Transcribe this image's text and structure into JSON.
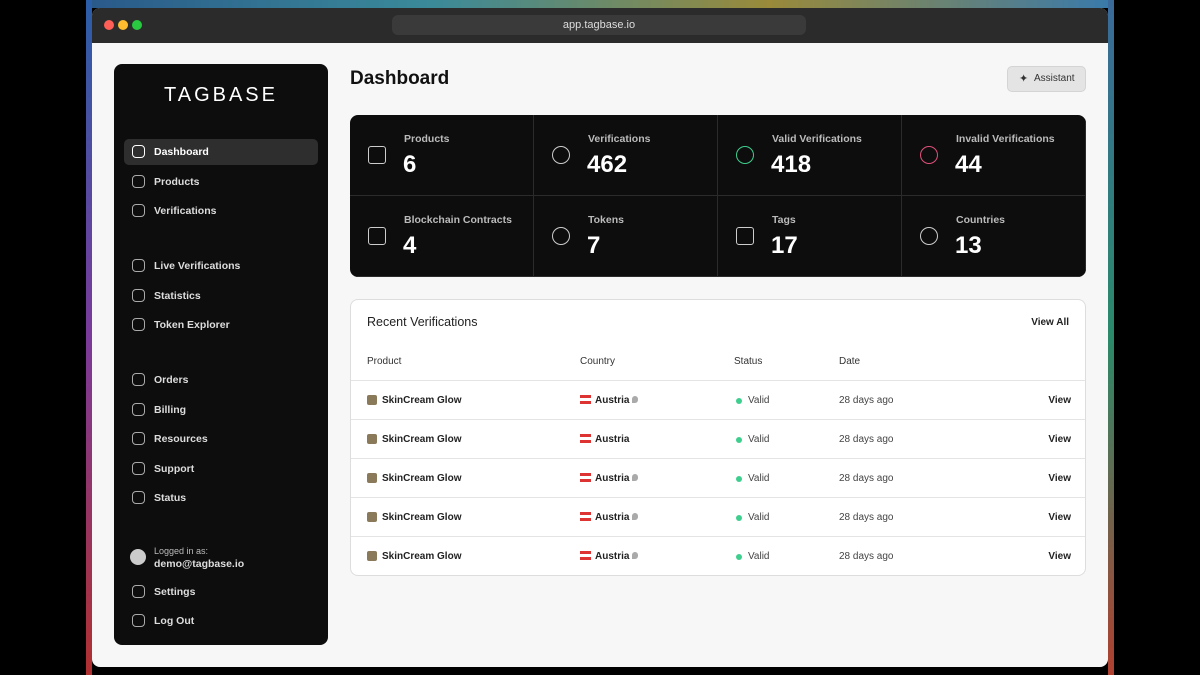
{
  "browser": {
    "url": "app.tagbase.io"
  },
  "sidebar": {
    "logo": "TAGBASE",
    "nav": [
      [
        "Dashboard",
        "Products",
        "Verifications"
      ],
      [
        "Live Verifications",
        "Statistics",
        "Token Explorer"
      ],
      [
        "Orders",
        "Billing",
        "Resources",
        "Support",
        "Status"
      ]
    ],
    "user_label": "Logged in as:",
    "user_email": "demo@tagbase.io",
    "settings": "Settings",
    "logout": "Log Out"
  },
  "header": {
    "title": "Dashboard",
    "assistant": "Assistant"
  },
  "stats": [
    {
      "label": "Products",
      "value": 6
    },
    {
      "label": "Verifications",
      "value": 462
    },
    {
      "label": "Valid Verifications",
      "value": 418
    },
    {
      "label": "Invalid Verifications",
      "value": 44
    },
    {
      "label": "Blockchain Contracts",
      "value": 4
    },
    {
      "label": "Tokens",
      "value": 7
    },
    {
      "label": "Tags",
      "value": 17
    },
    {
      "label": "Countries",
      "value": 13
    }
  ],
  "recent": {
    "title": "Recent Verifications",
    "view_all": "View All",
    "columns": [
      "Product",
      "Country",
      "Status",
      "Date"
    ],
    "rows": [
      {
        "product": "SkinCream Glow",
        "country": "Austria",
        "pin": true,
        "status": "Valid",
        "date": "28 days ago",
        "action": "View"
      },
      {
        "product": "SkinCream Glow",
        "country": "Austria",
        "pin": false,
        "status": "Valid",
        "date": "28 days ago",
        "action": "View"
      },
      {
        "product": "SkinCream Glow",
        "country": "Austria",
        "pin": true,
        "status": "Valid",
        "date": "28 days ago",
        "action": "View"
      },
      {
        "product": "SkinCream Glow",
        "country": "Austria",
        "pin": true,
        "status": "Valid",
        "date": "28 days ago",
        "action": "View"
      },
      {
        "product": "SkinCream Glow",
        "country": "Austria",
        "pin": true,
        "status": "Valid",
        "date": "28 days ago",
        "action": "View"
      }
    ]
  }
}
